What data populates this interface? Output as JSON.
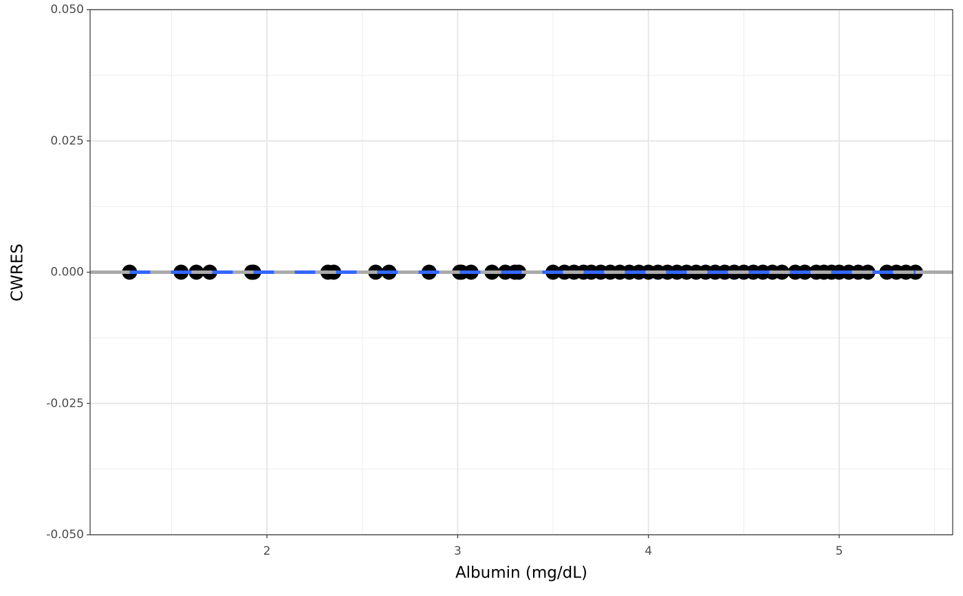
{
  "chart_data": {
    "type": "scatter",
    "x_label": "Albumin (mg/dL)",
    "y_label": "CWRES",
    "x": [
      1.28,
      1.55,
      1.63,
      1.7,
      1.92,
      1.93,
      2.32,
      2.35,
      2.57,
      2.64,
      2.85,
      3.01,
      3.02,
      3.07,
      3.18,
      3.25,
      3.3,
      3.32,
      3.5,
      3.56,
      3.61,
      3.66,
      3.7,
      3.75,
      3.8,
      3.85,
      3.9,
      3.95,
      4.0,
      4.05,
      4.1,
      4.15,
      4.2,
      4.25,
      4.3,
      4.35,
      4.4,
      4.45,
      4.5,
      4.55,
      4.6,
      4.65,
      4.7,
      4.77,
      4.82,
      4.88,
      4.92,
      4.96,
      5.0,
      5.05,
      5.1,
      5.15,
      5.25,
      5.3,
      5.35,
      5.4
    ],
    "values": [
      0,
      0,
      0,
      0,
      0,
      0,
      0,
      0,
      0,
      0,
      0,
      0,
      0,
      0,
      0,
      0,
      0,
      0,
      0,
      0,
      0,
      0,
      0,
      0,
      0,
      0,
      0,
      0,
      0,
      0,
      0,
      0,
      0,
      0,
      0,
      0,
      0,
      0,
      0,
      0,
      0,
      0,
      0,
      0,
      0,
      0,
      0,
      0,
      0,
      0,
      0,
      0,
      0,
      0,
      0,
      0
    ],
    "color": "#000000",
    "xlim": [
      1.073,
      5.595
    ],
    "ylim": [
      -0.05,
      0.05
    ],
    "xticks": [
      2,
      3,
      4,
      5
    ],
    "yticks": [
      {
        "value": 0.05,
        "label": "0.050"
      },
      {
        "value": 0.025,
        "label": "0.025"
      },
      {
        "value": 0,
        "label": "0.000"
      },
      {
        "value": -0.025,
        "label": "-0.025"
      },
      {
        "value": -0.05,
        "label": "-0.050"
      }
    ],
    "x_minor_grid": [
      1.5,
      2.5,
      3.5,
      4.5,
      5.5
    ],
    "y_minor_grid": [
      0.0375,
      0.0125,
      -0.0125,
      -0.0375
    ],
    "grid": true,
    "hline": {
      "value": 0,
      "color": "#aaaaaa"
    },
    "trend": {
      "x": [
        1.28,
        5.4
      ],
      "values": [
        0,
        0
      ],
      "color": "#3366ff"
    }
  }
}
